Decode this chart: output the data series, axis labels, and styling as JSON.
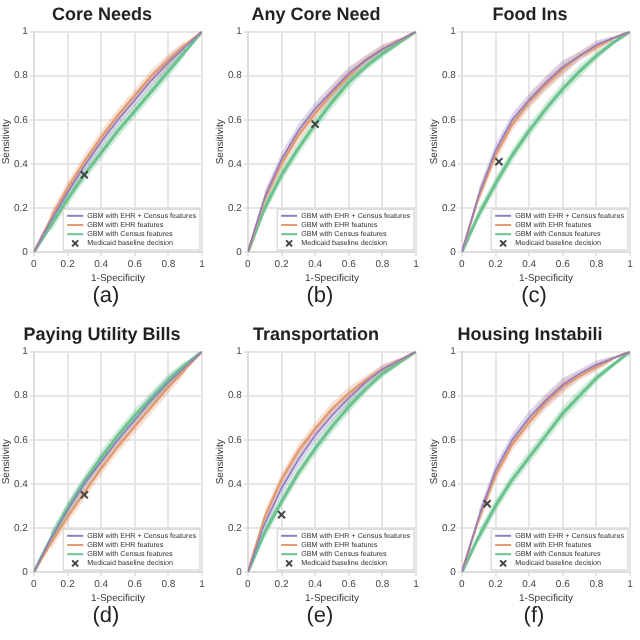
{
  "chart_data": [
    {
      "type": "line",
      "title": "Core Needs",
      "xlabel": "1-Specificity",
      "ylabel": "Sensitivity",
      "xlim": [
        0,
        1
      ],
      "ylim": [
        0,
        1
      ],
      "xticks": [
        0,
        0.2,
        0.4,
        0.6,
        0.8,
        1
      ],
      "yticks": [
        0,
        0.2,
        0.4,
        0.6,
        0.8,
        1
      ],
      "grid": true,
      "legend": "bottom right",
      "annotations": [
        "(a)"
      ],
      "series": [
        {
          "name": "GBM with EHR + Census features",
          "color": "#8e7cc3",
          "x": [
            0,
            0.1,
            0.2,
            0.3,
            0.4,
            0.5,
            0.6,
            0.7,
            0.8,
            0.9,
            1
          ],
          "values": [
            0,
            0.14,
            0.27,
            0.39,
            0.5,
            0.6,
            0.69,
            0.78,
            0.86,
            0.93,
            1
          ],
          "lower": [
            null,
            0.11,
            0.24,
            0.36,
            0.47,
            0.57,
            0.66,
            0.75,
            0.83,
            0.91,
            null
          ],
          "upper": [
            null,
            0.17,
            0.3,
            0.42,
            0.53,
            0.63,
            0.72,
            0.81,
            0.89,
            0.95,
            null
          ]
        },
        {
          "name": "GBM with EHR features",
          "color": "#e39a6f",
          "x": [
            0,
            0.1,
            0.2,
            0.3,
            0.4,
            0.5,
            0.6,
            0.7,
            0.8,
            0.9,
            1
          ],
          "values": [
            0,
            0.15,
            0.29,
            0.41,
            0.52,
            0.62,
            0.71,
            0.8,
            0.87,
            0.94,
            1
          ],
          "lower": [
            null,
            0.12,
            0.26,
            0.38,
            0.49,
            0.59,
            0.68,
            0.77,
            0.84,
            0.92,
            null
          ],
          "upper": [
            null,
            0.18,
            0.32,
            0.44,
            0.55,
            0.65,
            0.74,
            0.83,
            0.9,
            0.96,
            null
          ]
        },
        {
          "name": "GBM with Census features",
          "color": "#6cc38f",
          "x": [
            0,
            0.1,
            0.2,
            0.3,
            0.4,
            0.5,
            0.6,
            0.7,
            0.8,
            0.9,
            1
          ],
          "values": [
            0,
            0.12,
            0.24,
            0.35,
            0.45,
            0.55,
            0.64,
            0.73,
            0.82,
            0.91,
            1
          ],
          "lower": [
            null,
            0.09,
            0.21,
            0.32,
            0.42,
            0.52,
            0.61,
            0.7,
            0.79,
            0.89,
            null
          ],
          "upper": [
            null,
            0.15,
            0.27,
            0.38,
            0.48,
            0.58,
            0.67,
            0.76,
            0.85,
            0.93,
            null
          ]
        },
        {
          "name": "Medicaid baseline decision",
          "type": "scatter",
          "marker": "cross",
          "color": "#444444",
          "x": [
            0.3
          ],
          "values": [
            0.35
          ]
        }
      ]
    },
    {
      "type": "line",
      "title": "Any Core Need",
      "xlabel": "1-Specificity",
      "ylabel": "Sensitivity",
      "xlim": [
        0,
        1
      ],
      "ylim": [
        0,
        1
      ],
      "xticks": [
        0,
        0.2,
        0.4,
        0.6,
        0.8,
        1
      ],
      "yticks": [
        0,
        0.2,
        0.4,
        0.6,
        0.8,
        1
      ],
      "grid": true,
      "legend": "bottom right",
      "annotations": [
        "(b)"
      ],
      "series": [
        {
          "name": "GBM with EHR + Census features",
          "color": "#8e7cc3",
          "x": [
            0,
            0.1,
            0.2,
            0.3,
            0.4,
            0.5,
            0.6,
            0.7,
            0.8,
            0.9,
            1
          ],
          "values": [
            0,
            0.25,
            0.42,
            0.55,
            0.65,
            0.73,
            0.81,
            0.87,
            0.92,
            0.96,
            1
          ],
          "lower": [
            null,
            0.22,
            0.39,
            0.52,
            0.62,
            0.7,
            0.78,
            0.85,
            0.9,
            0.95,
            null
          ],
          "upper": [
            null,
            0.28,
            0.45,
            0.58,
            0.68,
            0.76,
            0.84,
            0.89,
            0.94,
            0.97,
            null
          ]
        },
        {
          "name": "GBM with EHR features",
          "color": "#e39a6f",
          "x": [
            0,
            0.1,
            0.2,
            0.3,
            0.4,
            0.5,
            0.6,
            0.7,
            0.8,
            0.9,
            1
          ],
          "values": [
            0,
            0.24,
            0.4,
            0.53,
            0.63,
            0.72,
            0.8,
            0.87,
            0.92,
            0.96,
            1
          ],
          "lower": [
            null,
            0.21,
            0.37,
            0.5,
            0.6,
            0.69,
            0.77,
            0.85,
            0.9,
            0.95,
            null
          ],
          "upper": [
            null,
            0.27,
            0.43,
            0.56,
            0.66,
            0.75,
            0.83,
            0.89,
            0.94,
            0.97,
            null
          ]
        },
        {
          "name": "GBM with Census features",
          "color": "#6cc38f",
          "x": [
            0,
            0.1,
            0.2,
            0.3,
            0.4,
            0.5,
            0.6,
            0.7,
            0.8,
            0.9,
            1
          ],
          "values": [
            0,
            0.2,
            0.35,
            0.47,
            0.58,
            0.68,
            0.77,
            0.84,
            0.9,
            0.95,
            1
          ],
          "lower": [
            null,
            0.17,
            0.32,
            0.44,
            0.55,
            0.65,
            0.74,
            0.82,
            0.88,
            0.94,
            null
          ],
          "upper": [
            null,
            0.23,
            0.38,
            0.5,
            0.61,
            0.71,
            0.8,
            0.86,
            0.92,
            0.96,
            null
          ]
        },
        {
          "name": "Medicaid baseline decision",
          "type": "scatter",
          "marker": "cross",
          "color": "#444444",
          "x": [
            0.4
          ],
          "values": [
            0.58
          ]
        }
      ]
    },
    {
      "type": "line",
      "title": "Food Ins",
      "xlabel": "1-Specificity",
      "ylabel": "Sensitivity",
      "xlim": [
        0,
        1
      ],
      "ylim": [
        0,
        1
      ],
      "xticks": [
        0,
        0.2,
        0.4,
        0.6,
        0.8,
        1
      ],
      "yticks": [
        0,
        0.2,
        0.4,
        0.6,
        0.8,
        1
      ],
      "grid": true,
      "legend": "bottom right",
      "annotations": [
        "(c)"
      ],
      "series": [
        {
          "name": "GBM with EHR + Census features",
          "color": "#8e7cc3",
          "x": [
            0,
            0.1,
            0.2,
            0.3,
            0.4,
            0.5,
            0.6,
            0.7,
            0.8,
            0.9,
            1
          ],
          "values": [
            0,
            0.26,
            0.46,
            0.6,
            0.69,
            0.77,
            0.84,
            0.89,
            0.94,
            0.97,
            1
          ],
          "lower": [
            null,
            0.23,
            0.43,
            0.57,
            0.66,
            0.74,
            0.81,
            0.87,
            0.92,
            0.96,
            null
          ],
          "upper": [
            null,
            0.29,
            0.49,
            0.63,
            0.72,
            0.8,
            0.87,
            0.91,
            0.96,
            0.98,
            null
          ]
        },
        {
          "name": "GBM with EHR features",
          "color": "#e39a6f",
          "x": [
            0,
            0.1,
            0.2,
            0.3,
            0.4,
            0.5,
            0.6,
            0.7,
            0.8,
            0.9,
            1
          ],
          "values": [
            0,
            0.25,
            0.44,
            0.58,
            0.68,
            0.76,
            0.83,
            0.89,
            0.93,
            0.97,
            1
          ],
          "lower": [
            null,
            0.22,
            0.41,
            0.55,
            0.65,
            0.73,
            0.8,
            0.87,
            0.91,
            0.96,
            null
          ],
          "upper": [
            null,
            0.28,
            0.47,
            0.61,
            0.71,
            0.79,
            0.86,
            0.91,
            0.95,
            0.98,
            null
          ]
        },
        {
          "name": "GBM with Census features",
          "color": "#6cc38f",
          "x": [
            0,
            0.1,
            0.2,
            0.3,
            0.4,
            0.5,
            0.6,
            0.7,
            0.8,
            0.9,
            1
          ],
          "values": [
            0,
            0.17,
            0.31,
            0.44,
            0.55,
            0.65,
            0.74,
            0.82,
            0.89,
            0.95,
            1
          ],
          "lower": [
            null,
            0.14,
            0.28,
            0.41,
            0.52,
            0.62,
            0.71,
            0.79,
            0.87,
            0.94,
            null
          ],
          "upper": [
            null,
            0.2,
            0.34,
            0.47,
            0.58,
            0.68,
            0.77,
            0.85,
            0.91,
            0.96,
            null
          ]
        },
        {
          "name": "Medicaid baseline decision",
          "type": "scatter",
          "marker": "cross",
          "color": "#444444",
          "x": [
            0.22
          ],
          "values": [
            0.41
          ]
        }
      ]
    },
    {
      "type": "line",
      "title": "Paying Utility Bills",
      "xlabel": "1-Specificity",
      "ylabel": "Sensitivity",
      "xlim": [
        0,
        1
      ],
      "ylim": [
        0,
        1
      ],
      "xticks": [
        0,
        0.2,
        0.4,
        0.6,
        0.8,
        1
      ],
      "yticks": [
        0,
        0.2,
        0.4,
        0.6,
        0.8,
        1
      ],
      "grid": true,
      "legend": "bottom right",
      "annotations": [
        "(d)"
      ],
      "series": [
        {
          "name": "GBM with EHR + Census features",
          "color": "#8e7cc3",
          "x": [
            0,
            0.1,
            0.2,
            0.3,
            0.4,
            0.5,
            0.6,
            0.7,
            0.8,
            0.9,
            1
          ],
          "values": [
            0,
            0.15,
            0.28,
            0.4,
            0.5,
            0.6,
            0.69,
            0.78,
            0.86,
            0.93,
            1
          ],
          "lower": [
            null,
            0.12,
            0.25,
            0.37,
            0.47,
            0.57,
            0.66,
            0.75,
            0.83,
            0.91,
            null
          ],
          "upper": [
            null,
            0.18,
            0.31,
            0.43,
            0.53,
            0.63,
            0.72,
            0.81,
            0.89,
            0.95,
            null
          ]
        },
        {
          "name": "GBM with EHR features",
          "color": "#e39a6f",
          "x": [
            0,
            0.1,
            0.2,
            0.3,
            0.4,
            0.5,
            0.6,
            0.7,
            0.8,
            0.9,
            1
          ],
          "values": [
            0,
            0.13,
            0.25,
            0.36,
            0.47,
            0.57,
            0.66,
            0.75,
            0.84,
            0.92,
            1
          ],
          "lower": [
            null,
            0.1,
            0.22,
            0.33,
            0.44,
            0.54,
            0.63,
            0.72,
            0.81,
            0.9,
            null
          ],
          "upper": [
            null,
            0.16,
            0.28,
            0.39,
            0.5,
            0.6,
            0.69,
            0.78,
            0.87,
            0.94,
            null
          ]
        },
        {
          "name": "GBM with Census features",
          "color": "#6cc38f",
          "x": [
            0,
            0.1,
            0.2,
            0.3,
            0.4,
            0.5,
            0.6,
            0.7,
            0.8,
            0.9,
            1
          ],
          "values": [
            0,
            0.15,
            0.29,
            0.41,
            0.52,
            0.62,
            0.71,
            0.79,
            0.87,
            0.94,
            1
          ],
          "lower": [
            null,
            0.12,
            0.26,
            0.38,
            0.49,
            0.59,
            0.68,
            0.76,
            0.84,
            0.92,
            null
          ],
          "upper": [
            null,
            0.18,
            0.32,
            0.44,
            0.55,
            0.65,
            0.74,
            0.82,
            0.9,
            0.96,
            null
          ]
        },
        {
          "name": "Medicaid baseline decision",
          "type": "scatter",
          "marker": "cross",
          "color": "#444444",
          "x": [
            0.3
          ],
          "values": [
            0.35
          ]
        }
      ]
    },
    {
      "type": "line",
      "title": "Transportation",
      "xlabel": "1-Specificity",
      "ylabel": "Sensitivity",
      "xlim": [
        0,
        1
      ],
      "ylim": [
        0,
        1
      ],
      "xticks": [
        0,
        0.2,
        0.4,
        0.6,
        0.8,
        1
      ],
      "yticks": [
        0,
        0.2,
        0.4,
        0.6,
        0.8,
        1
      ],
      "grid": true,
      "legend": "bottom right",
      "annotations": [
        "(e)"
      ],
      "series": [
        {
          "name": "GBM with EHR + Census features",
          "color": "#8e7cc3",
          "x": [
            0,
            0.1,
            0.2,
            0.3,
            0.4,
            0.5,
            0.6,
            0.7,
            0.8,
            0.9,
            1
          ],
          "values": [
            0,
            0.22,
            0.38,
            0.51,
            0.62,
            0.71,
            0.79,
            0.86,
            0.92,
            0.96,
            1
          ],
          "lower": [
            null,
            0.19,
            0.35,
            0.48,
            0.59,
            0.68,
            0.76,
            0.84,
            0.9,
            0.95,
            null
          ],
          "upper": [
            null,
            0.25,
            0.41,
            0.54,
            0.65,
            0.74,
            0.82,
            0.88,
            0.94,
            0.97,
            null
          ]
        },
        {
          "name": "GBM with EHR features",
          "color": "#e39a6f",
          "x": [
            0,
            0.1,
            0.2,
            0.3,
            0.4,
            0.5,
            0.6,
            0.7,
            0.8,
            0.9,
            1
          ],
          "values": [
            0,
            0.25,
            0.42,
            0.55,
            0.65,
            0.74,
            0.81,
            0.87,
            0.92,
            0.96,
            1
          ],
          "lower": [
            null,
            0.22,
            0.39,
            0.52,
            0.62,
            0.71,
            0.78,
            0.85,
            0.9,
            0.95,
            null
          ],
          "upper": [
            null,
            0.28,
            0.45,
            0.58,
            0.68,
            0.77,
            0.84,
            0.89,
            0.94,
            0.97,
            null
          ]
        },
        {
          "name": "GBM with Census features",
          "color": "#6cc38f",
          "x": [
            0,
            0.1,
            0.2,
            0.3,
            0.4,
            0.5,
            0.6,
            0.7,
            0.8,
            0.9,
            1
          ],
          "values": [
            0,
            0.18,
            0.32,
            0.45,
            0.56,
            0.66,
            0.75,
            0.83,
            0.9,
            0.95,
            1
          ],
          "lower": [
            null,
            0.15,
            0.29,
            0.42,
            0.53,
            0.63,
            0.72,
            0.81,
            0.88,
            0.94,
            null
          ],
          "upper": [
            null,
            0.21,
            0.35,
            0.48,
            0.59,
            0.69,
            0.78,
            0.85,
            0.92,
            0.96,
            null
          ]
        },
        {
          "name": "Medicaid baseline decision",
          "type": "scatter",
          "marker": "cross",
          "color": "#444444",
          "x": [
            0.2
          ],
          "values": [
            0.26
          ]
        }
      ]
    },
    {
      "type": "line",
      "title": "Housing Instabili",
      "xlabel": "1-Specificity",
      "ylabel": "Sensitivity",
      "xlim": [
        0,
        1
      ],
      "ylim": [
        0,
        1
      ],
      "xticks": [
        0,
        0.2,
        0.4,
        0.6,
        0.8,
        1
      ],
      "yticks": [
        0,
        0.2,
        0.4,
        0.6,
        0.8,
        1
      ],
      "grid": true,
      "legend": "bottom right",
      "annotations": [
        "(f)"
      ],
      "series": [
        {
          "name": "GBM with EHR + Census features",
          "color": "#8e7cc3",
          "x": [
            0,
            0.1,
            0.2,
            0.3,
            0.4,
            0.5,
            0.6,
            0.7,
            0.8,
            0.9,
            1
          ],
          "values": [
            0,
            0.25,
            0.46,
            0.6,
            0.7,
            0.78,
            0.85,
            0.9,
            0.94,
            0.97,
            1
          ],
          "lower": [
            null,
            0.22,
            0.43,
            0.57,
            0.67,
            0.75,
            0.82,
            0.88,
            0.92,
            0.96,
            null
          ],
          "upper": [
            null,
            0.28,
            0.49,
            0.63,
            0.73,
            0.81,
            0.88,
            0.92,
            0.96,
            0.98,
            null
          ]
        },
        {
          "name": "GBM with EHR features",
          "color": "#e39a6f",
          "x": [
            0,
            0.1,
            0.2,
            0.3,
            0.4,
            0.5,
            0.6,
            0.7,
            0.8,
            0.9,
            1
          ],
          "values": [
            0,
            0.24,
            0.44,
            0.58,
            0.68,
            0.77,
            0.84,
            0.89,
            0.93,
            0.97,
            1
          ],
          "lower": [
            null,
            0.21,
            0.41,
            0.55,
            0.65,
            0.74,
            0.81,
            0.87,
            0.91,
            0.96,
            null
          ],
          "upper": [
            null,
            0.27,
            0.47,
            0.61,
            0.71,
            0.8,
            0.87,
            0.91,
            0.95,
            0.98,
            null
          ]
        },
        {
          "name": "GBM with Census features",
          "color": "#6cc38f",
          "x": [
            0,
            0.1,
            0.2,
            0.3,
            0.4,
            0.5,
            0.6,
            0.7,
            0.8,
            0.9,
            1
          ],
          "values": [
            0,
            0.16,
            0.3,
            0.42,
            0.52,
            0.62,
            0.72,
            0.8,
            0.88,
            0.94,
            1
          ],
          "lower": [
            null,
            0.13,
            0.27,
            0.39,
            0.49,
            0.59,
            0.69,
            0.77,
            0.86,
            0.93,
            null
          ],
          "upper": [
            null,
            0.19,
            0.33,
            0.45,
            0.55,
            0.65,
            0.75,
            0.83,
            0.9,
            0.95,
            null
          ]
        },
        {
          "name": "Medicaid baseline decision",
          "type": "scatter",
          "marker": "cross",
          "color": "#444444",
          "x": [
            0.15
          ],
          "values": [
            0.31
          ]
        }
      ]
    }
  ]
}
